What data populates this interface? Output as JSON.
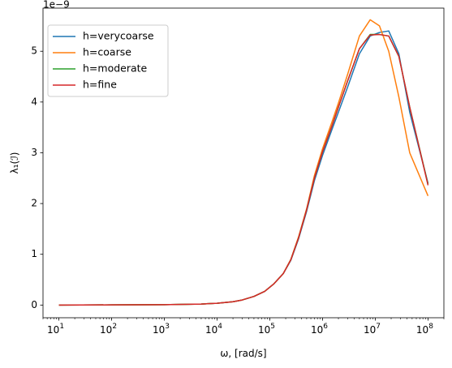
{
  "chart_data": {
    "type": "line",
    "xlabel": "ω, [rad/s]",
    "ylabel": "λ₁(ℐ)",
    "y_offset_label": "1e−9",
    "xscale": "log",
    "xlim": [
      5,
      200000000
    ],
    "ylim": [
      -0.25,
      5.85
    ],
    "x_ticks": [
      {
        "value": 10,
        "base": "10",
        "exp": "1"
      },
      {
        "value": 100,
        "base": "10",
        "exp": "2"
      },
      {
        "value": 1000,
        "base": "10",
        "exp": "3"
      },
      {
        "value": 10000,
        "base": "10",
        "exp": "4"
      },
      {
        "value": 100000,
        "base": "10",
        "exp": "5"
      },
      {
        "value": 1000000,
        "base": "10",
        "exp": "6"
      },
      {
        "value": 10000000,
        "base": "10",
        "exp": "7"
      },
      {
        "value": 100000000,
        "base": "10",
        "exp": "8"
      }
    ],
    "y_ticks": [
      {
        "value": 0,
        "label": "0"
      },
      {
        "value": 1,
        "label": "1"
      },
      {
        "value": 2,
        "label": "2"
      },
      {
        "value": 3,
        "label": "3"
      },
      {
        "value": 4,
        "label": "4"
      },
      {
        "value": 5,
        "label": "5"
      }
    ],
    "grid": false,
    "legend_position": "top-left",
    "x": [
      10,
      100,
      1000,
      5000,
      10000,
      20000,
      30000,
      50000,
      80000,
      120000,
      180000,
      250000,
      350000,
      500000,
      700000,
      1000000,
      1500000,
      2000000,
      3000000,
      5000000,
      8000000,
      12000000,
      18000000,
      28000000,
      45000000,
      100000000
    ],
    "series": [
      {
        "name": "h=verycoarse",
        "color": "#1f77b4",
        "values": [
          0.0,
          0.003,
          0.008,
          0.02,
          0.035,
          0.065,
          0.1,
          0.17,
          0.27,
          0.42,
          0.62,
          0.88,
          1.3,
          1.85,
          2.45,
          2.95,
          3.45,
          3.8,
          4.3,
          4.95,
          5.3,
          5.37,
          5.4,
          4.95,
          3.8,
          2.4
        ]
      },
      {
        "name": "h=coarse",
        "color": "#ff7f0e",
        "values": [
          0.0,
          0.003,
          0.008,
          0.02,
          0.035,
          0.065,
          0.1,
          0.17,
          0.27,
          0.42,
          0.62,
          0.9,
          1.34,
          1.9,
          2.55,
          3.08,
          3.6,
          3.98,
          4.55,
          5.3,
          5.62,
          5.5,
          5.0,
          4.1,
          3.0,
          2.15
        ]
      },
      {
        "name": "h=moderate",
        "color": "#2ca02c",
        "values": [
          0.0,
          0.003,
          0.008,
          0.02,
          0.035,
          0.065,
          0.1,
          0.17,
          0.27,
          0.42,
          0.62,
          0.89,
          1.32,
          1.88,
          2.5,
          3.02,
          3.52,
          3.9,
          4.42,
          5.05,
          5.33,
          5.33,
          5.3,
          4.9,
          3.9,
          2.38
        ]
      },
      {
        "name": "h=fine",
        "color": "#d62728",
        "values": [
          0.0,
          0.003,
          0.008,
          0.02,
          0.035,
          0.065,
          0.1,
          0.17,
          0.27,
          0.42,
          0.62,
          0.89,
          1.32,
          1.88,
          2.5,
          3.02,
          3.52,
          3.9,
          4.42,
          5.05,
          5.32,
          5.33,
          5.3,
          4.9,
          3.9,
          2.36
        ]
      }
    ]
  }
}
